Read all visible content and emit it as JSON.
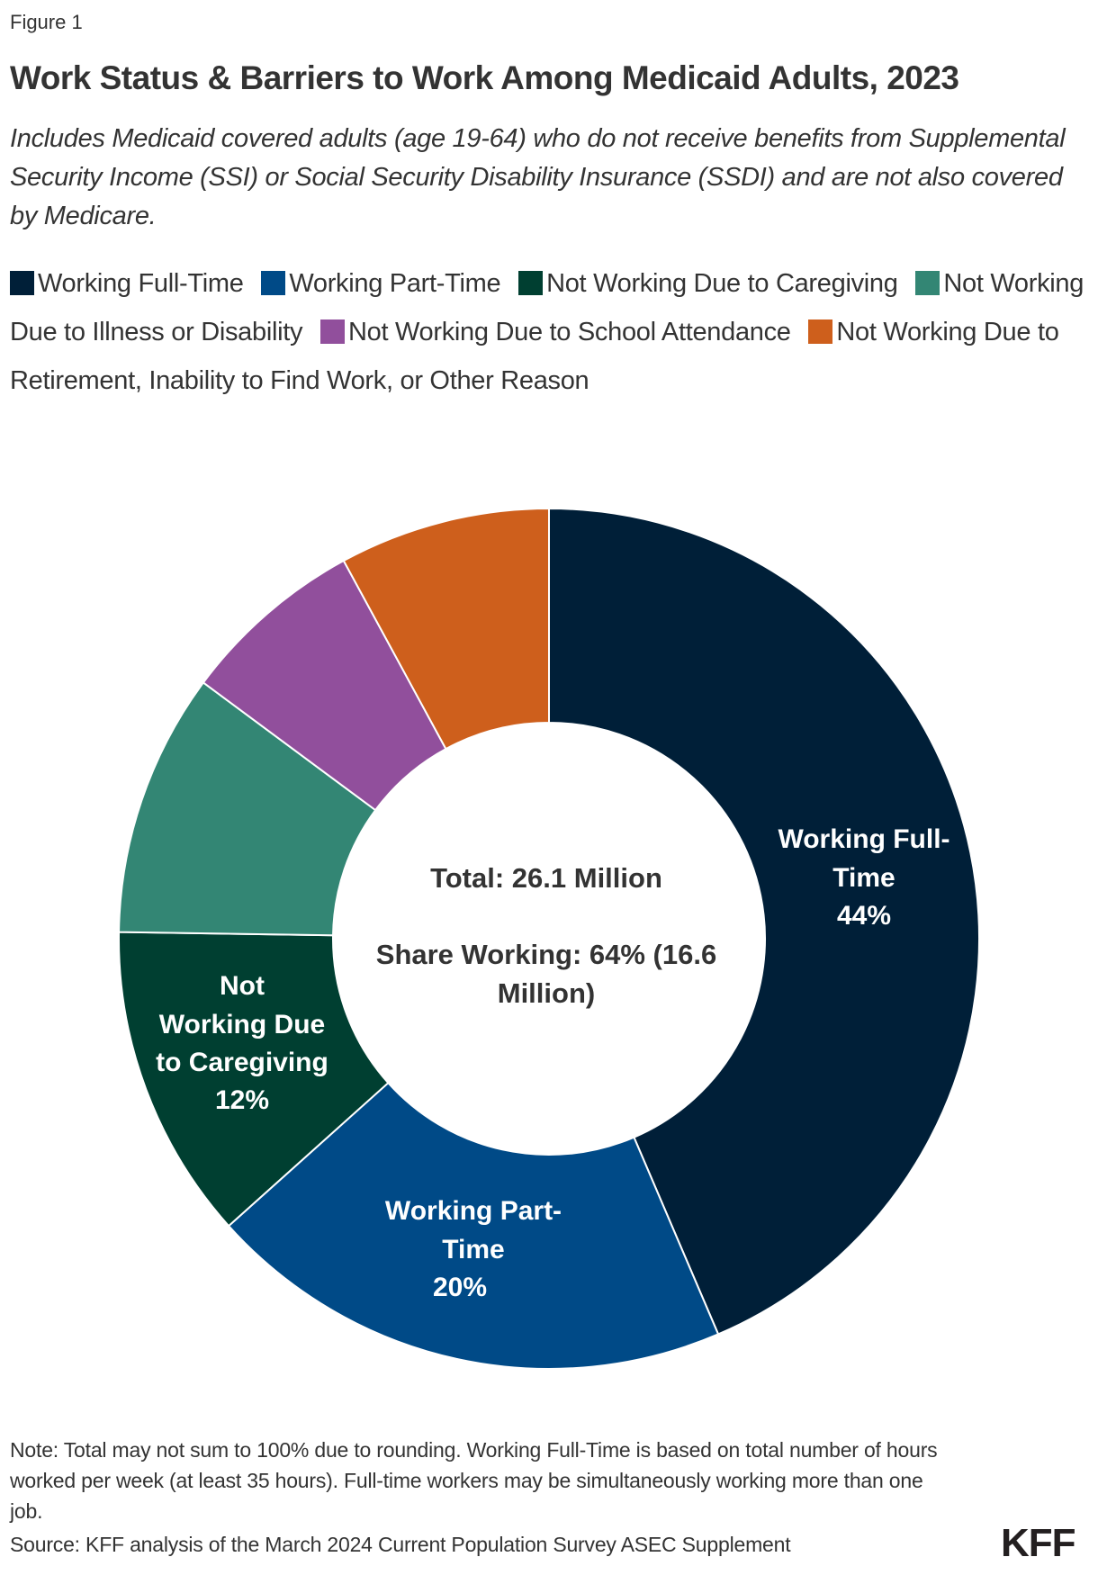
{
  "figure_label": "Figure 1",
  "title": "Work Status & Barriers to Work Among Medicaid Adults, 2023",
  "subtitle": "Includes Medicaid covered adults (age 19-64) who do not receive benefits from Supplemental Security Income (SSI) or Social Security Disability Insurance (SSDI) and are not also covered by Medicare.",
  "legend": [
    {
      "label": "Working Full-Time",
      "color": "#001f38"
    },
    {
      "label": "Working Part-Time",
      "color": "#004a87"
    },
    {
      "label": "Not Working Due to Caregiving",
      "color": "#003f31"
    },
    {
      "label": "Not Working Due to Illness or Disability",
      "color": "#338674"
    },
    {
      "label": "Not Working Due to School Attendance",
      "color": "#914f9c"
    },
    {
      "label": "Not Working Due to Retirement, Inability to Find Work, or Other Reason",
      "color": "#ce5f1c"
    }
  ],
  "center": {
    "total": "Total: 26.1 Million",
    "share_line1": "Share Working: 64% (16.6",
    "share_line2": "Million)"
  },
  "slice_labels": {
    "full_time": [
      "Working Full-",
      "Time",
      "44%"
    ],
    "part_time": [
      "Working Part-",
      "Time",
      "20%"
    ],
    "caregiving": [
      "Not",
      "Working Due",
      "to Caregiving",
      "12%"
    ]
  },
  "note": "Note: Total may not sum to 100% due to rounding. Working Full-Time is based on total number of hours worked per week (at least 35 hours). Full-time workers may be simultaneously working more than one job.",
  "source": "Source: KFF analysis of the March 2024 Current Population Survey ASEC Supplement",
  "logo": "KFF",
  "chart_data": {
    "type": "pie",
    "subtype": "donut",
    "title": "Work Status & Barriers to Work Among Medicaid Adults, 2023",
    "categories": [
      "Working Full-Time",
      "Working Part-Time",
      "Not Working Due to Caregiving",
      "Not Working Due to Illness or Disability",
      "Not Working Due to School Attendance",
      "Not Working Due to Retirement, Inability to Find Work, or Other Reason"
    ],
    "values": [
      44,
      20,
      12,
      10,
      7,
      8
    ],
    "unit": "%",
    "labeled_values": {
      "Working Full-Time": 44,
      "Working Part-Time": 20,
      "Not Working Due to Caregiving": 12
    },
    "colors": [
      "#001f38",
      "#004a87",
      "#003f31",
      "#338674",
      "#914f9c",
      "#ce5f1c"
    ],
    "center_annotation": [
      "Total: 26.1 Million",
      "Share Working: 64% (16.6 Million)"
    ],
    "legend_position": "top",
    "start_angle": "12 o'clock, clockwise"
  }
}
